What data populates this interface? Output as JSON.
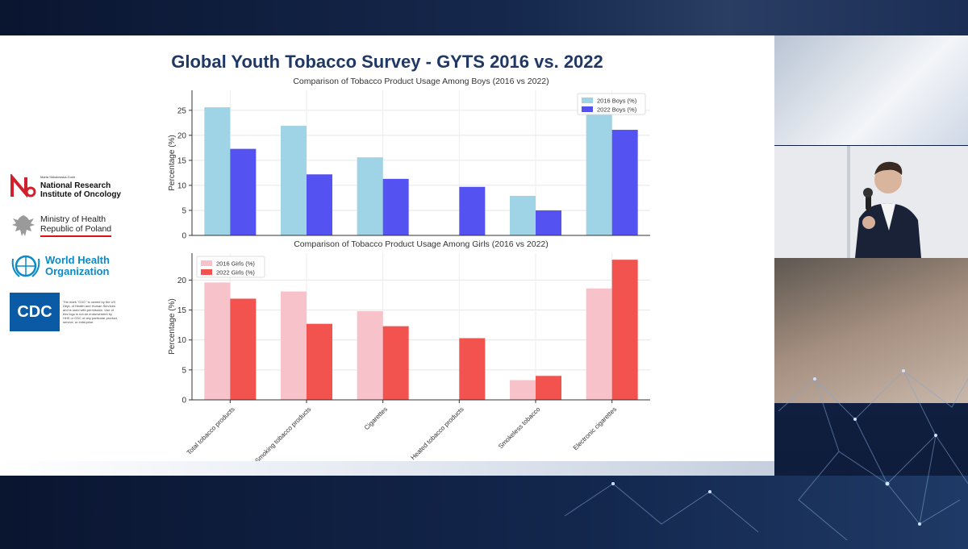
{
  "slide": {
    "title": "Global Youth Tobacco Survey - GYTS 2016 vs. 2022"
  },
  "logos": {
    "nio": {
      "small": "Maria Skłodowska-Curie",
      "line1": "National Research",
      "line2": "Institute of Oncology",
      "icon": "nio-logo-icon"
    },
    "moh": {
      "line1": "Ministry of Health",
      "line2": "Republic of Poland",
      "icon": "polish-eagle-icon"
    },
    "who": {
      "line1": "World Health",
      "line2": "Organization",
      "icon": "who-emblem-icon"
    },
    "cdc": {
      "mark": "CDC",
      "note": "The mark \"CDC\" is owned by the US Dept. of Health and Human Services and is used with permission. Use of this logo is not an endorsement by HHS or CDC of any particular product, service, or enterprise.",
      "icon": "cdc-logo-icon"
    }
  },
  "chart_data": [
    {
      "type": "bar",
      "title": "Comparison of Tobacco Product Usage Among Boys (2016 vs 2022)",
      "xlabel": "",
      "ylabel": "Percentage (%)",
      "ylim": [
        0,
        29
      ],
      "yticks": [
        0,
        5,
        10,
        15,
        20,
        25
      ],
      "grid": true,
      "legend": "top-right",
      "categories": [
        "Total tobacco products",
        "Smoking tobacco products",
        "Cigarettes",
        "Heated tobacco products",
        "Smokeless tobacco",
        "Electronic cigarettes"
      ],
      "series": [
        {
          "name": "2016 Boys (%)",
          "color": "#9fd4e6",
          "values": [
            25.6,
            21.9,
            15.6,
            null,
            7.9,
            27.9
          ]
        },
        {
          "name": "2022 Boys (%)",
          "color": "#5552f2",
          "values": [
            17.3,
            12.2,
            11.3,
            9.7,
            5.0,
            21.1
          ]
        }
      ]
    },
    {
      "type": "bar",
      "title": "Comparison of Tobacco Product Usage Among Girls (2016 vs 2022)",
      "xlabel": "",
      "ylabel": "Percentage (%)",
      "ylim": [
        0,
        24.5
      ],
      "yticks": [
        0,
        5,
        10,
        15,
        20
      ],
      "grid": true,
      "legend": "top-left",
      "categories": [
        "Total tobacco products",
        "Smoking tobacco products",
        "Cigarettes",
        "Heated tobacco products",
        "Smokeless tobacco",
        "Electronic cigarettes"
      ],
      "series": [
        {
          "name": "2016 Girls (%)",
          "color": "#f7c2c9",
          "values": [
            19.6,
            18.1,
            14.8,
            null,
            3.3,
            18.6
          ]
        },
        {
          "name": "2022 Girls (%)",
          "color": "#f2534f",
          "values": [
            16.9,
            12.7,
            12.3,
            10.3,
            4.0,
            23.4
          ]
        }
      ]
    }
  ]
}
